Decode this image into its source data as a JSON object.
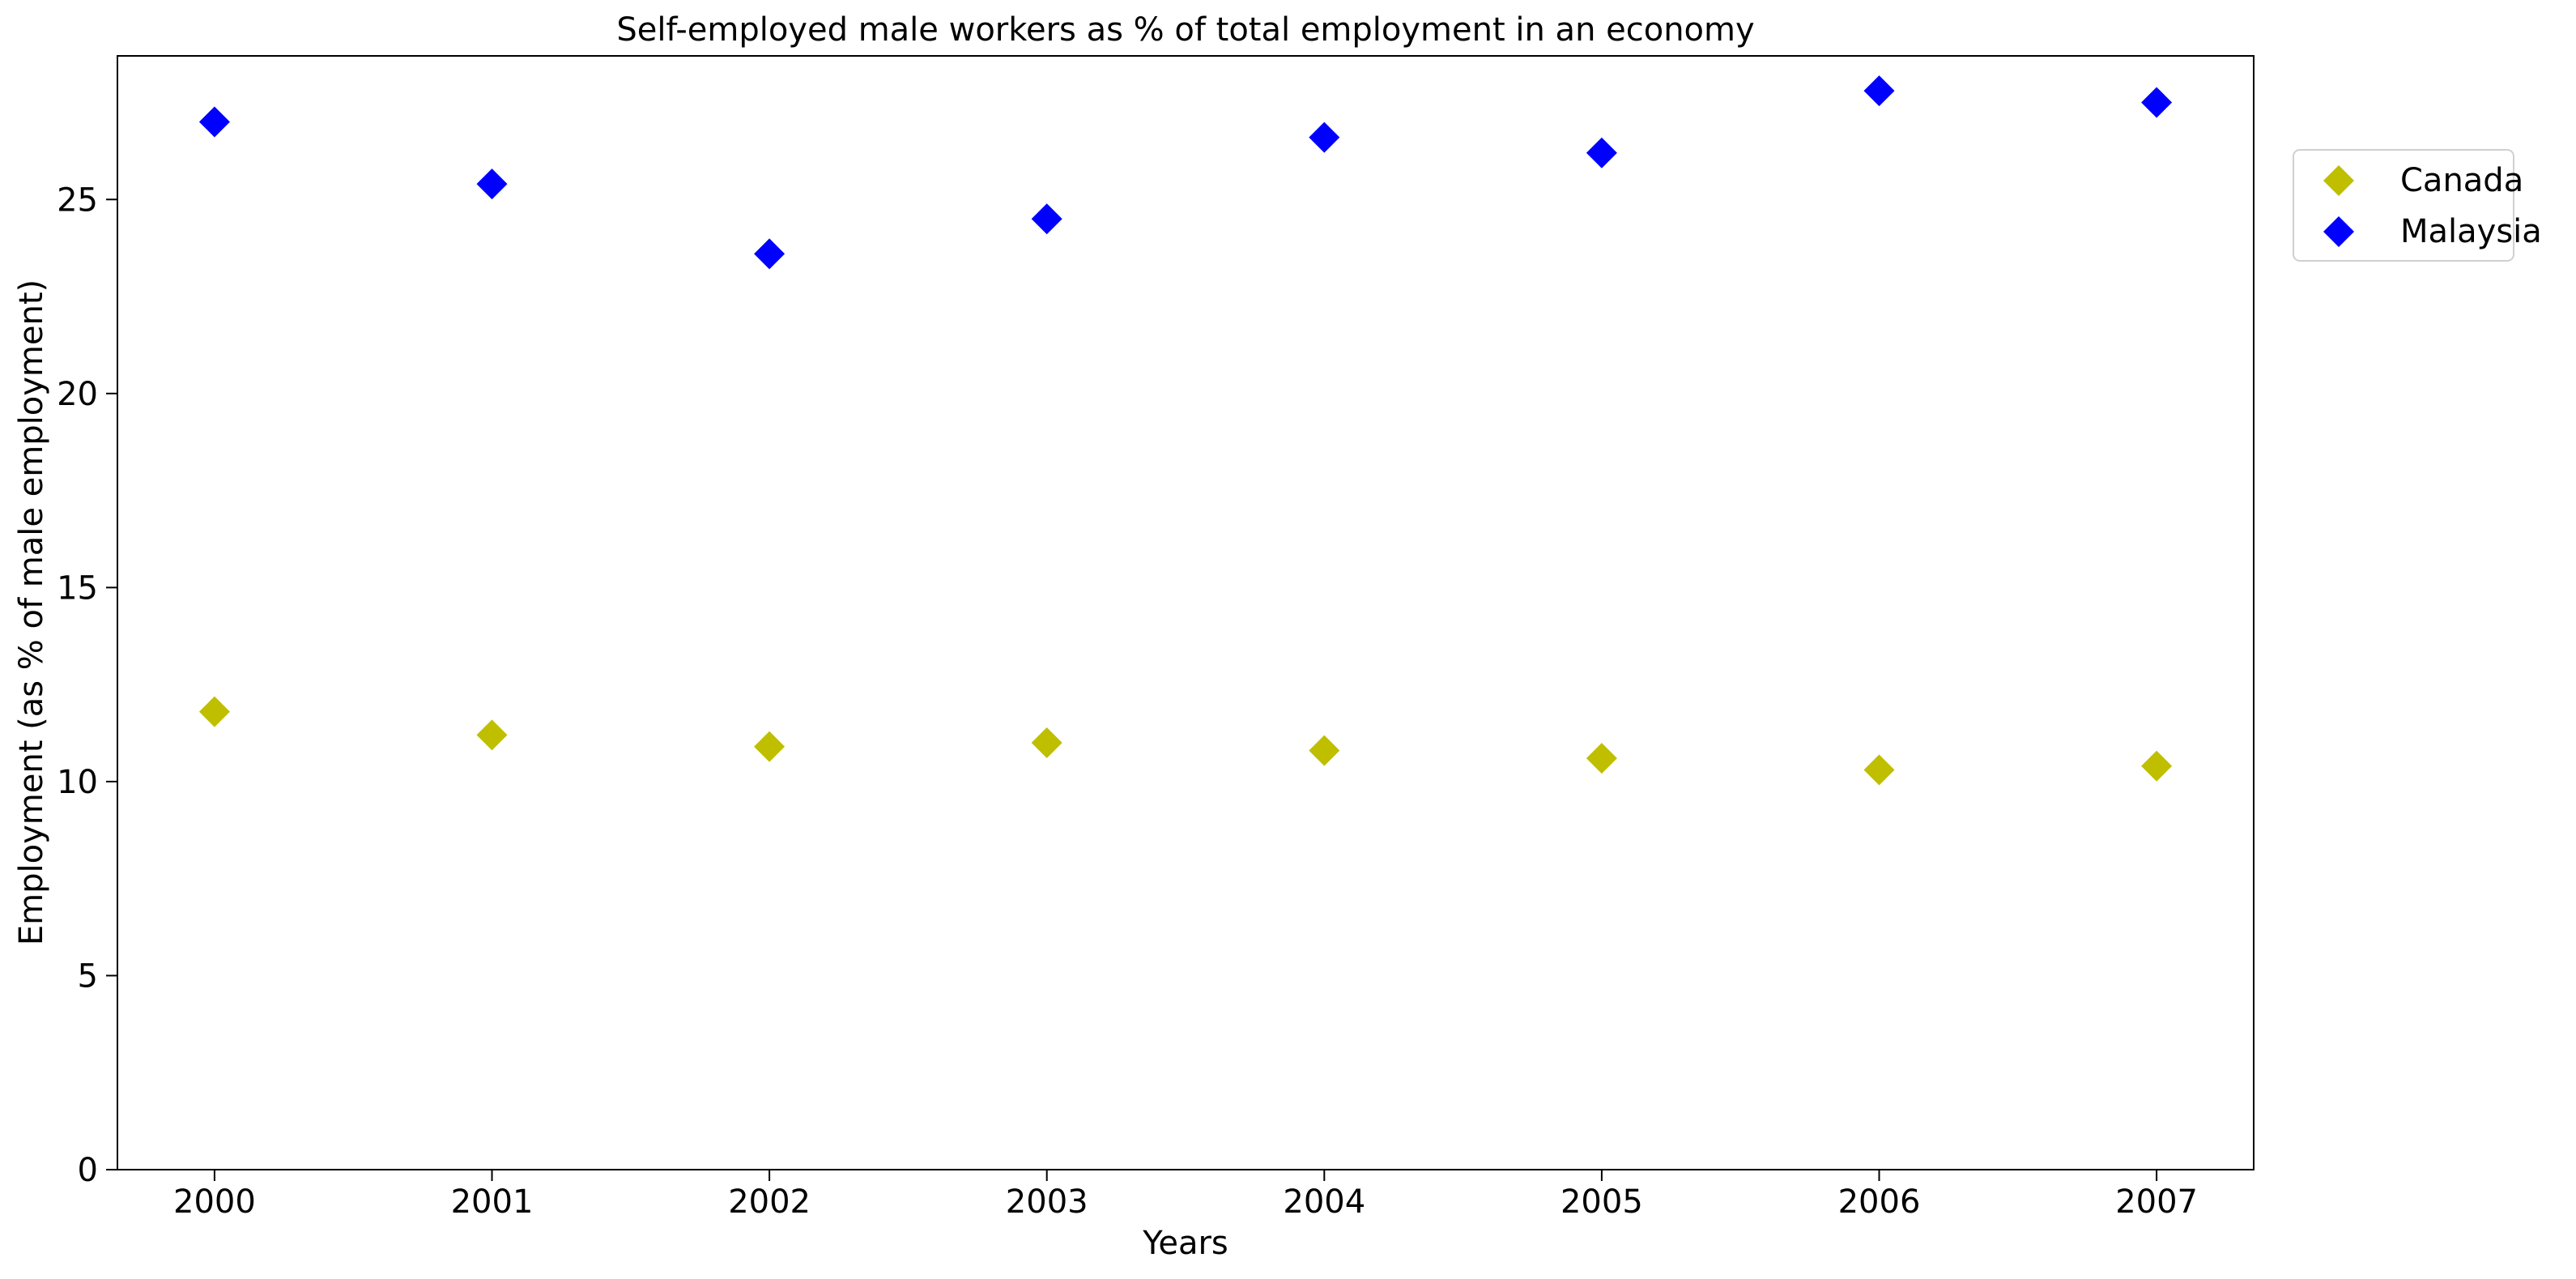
{
  "chart_data": {
    "type": "scatter",
    "title": "Self-employed male workers as % of total employment in an economy",
    "xlabel": "Years",
    "ylabel": "Employment (as % of male employment)",
    "x": [
      "2000",
      "2001",
      "2002",
      "2003",
      "2004",
      "2005",
      "2006",
      "2007"
    ],
    "xlim": [
      1999.65,
      2007.35
    ],
    "ylim": [
      0,
      28.7
    ],
    "yticks": [
      0,
      5,
      10,
      15,
      20,
      25
    ],
    "grid": false,
    "legend_position": "outside-top-right",
    "marker": "diamond",
    "series": [
      {
        "name": "Canada",
        "color": "#bfbf00",
        "values": [
          11.8,
          11.2,
          10.9,
          11.0,
          10.8,
          10.6,
          10.3,
          10.4
        ]
      },
      {
        "name": "Malaysia",
        "color": "#0000ff",
        "values": [
          27.0,
          25.4,
          23.6,
          24.5,
          26.6,
          26.2,
          27.8,
          27.5
        ]
      }
    ]
  }
}
